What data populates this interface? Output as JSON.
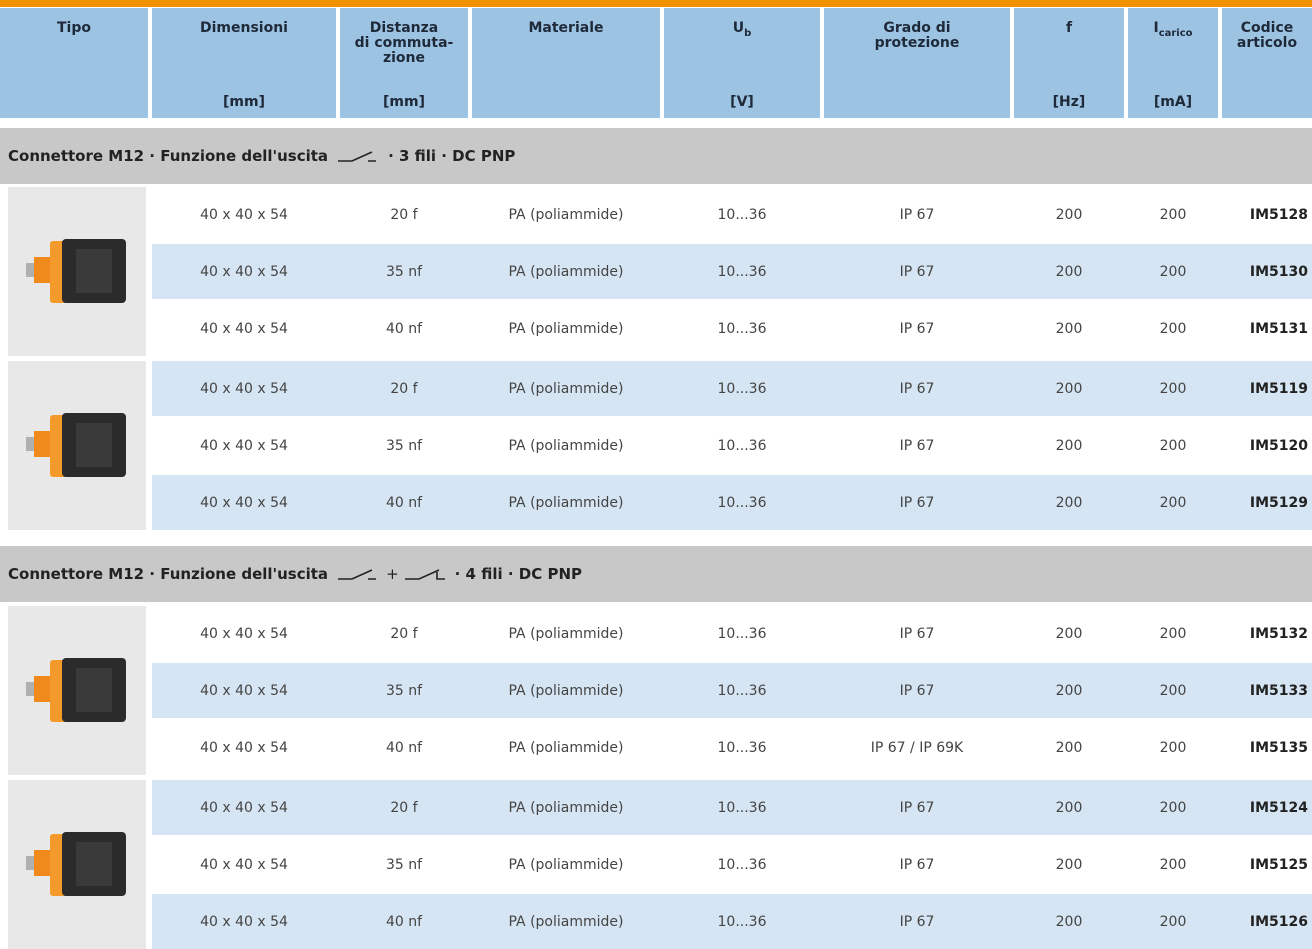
{
  "header": {
    "columns": [
      {
        "lines": [
          "Tipo"
        ]
      },
      {
        "lines": [
          "Dimensioni"
        ],
        "unit": "[mm]"
      },
      {
        "lines": [
          "Distanza",
          "di commuta-",
          "zione"
        ],
        "unit": "[mm]"
      },
      {
        "lines": [
          "Materiale"
        ]
      },
      {
        "lines": [
          "U"
        ],
        "sub": "b",
        "unit": "[V]"
      },
      {
        "lines": [
          "Grado di",
          "protezione"
        ]
      },
      {
        "lines": [
          "f"
        ],
        "unit": "[Hz]"
      },
      {
        "lines": [
          "I"
        ],
        "sub": "carico",
        "unit": "[mA]"
      },
      {
        "lines": [
          "Codice",
          "articolo"
        ]
      }
    ]
  },
  "sections": [
    {
      "title": "Connettore M12 · Funzione dell'uscita",
      "suffix": "· 3  fili · DC PNP",
      "groups": [
        {
          "rows": [
            [
              "40 x 40 x 54",
              "20 f",
              "PA (poliammide)",
              "10...36",
              "IP 67",
              "200",
              "200",
              "IM5128"
            ],
            [
              "40 x 40 x 54",
              "35 nf",
              "PA (poliammide)",
              "10...36",
              "IP 67",
              "200",
              "200",
              "IM5130"
            ],
            [
              "40 x 40 x 54",
              "40 nf",
              "PA (poliammide)",
              "10...36",
              "IP 67",
              "200",
              "200",
              "IM5131"
            ]
          ]
        },
        {
          "rows": [
            [
              "40 x 40 x 54",
              "20 f",
              "PA (poliammide)",
              "10...36",
              "IP 67",
              "200",
              "200",
              "IM5119"
            ],
            [
              "40 x 40 x 54",
              "35 nf",
              "PA (poliammide)",
              "10...36",
              "IP 67",
              "200",
              "200",
              "IM5120"
            ],
            [
              "40 x 40 x 54",
              "40 nf",
              "PA (poliammide)",
              "10...36",
              "IP 67",
              "200",
              "200",
              "IM5129"
            ]
          ]
        }
      ]
    },
    {
      "title": "Connettore M12 · Funzione dell'uscita",
      "joiner": "+",
      "suffix": "· 4  fili · DC PNP",
      "groups": [
        {
          "rows": [
            [
              "40 x 40 x 54",
              "20 f",
              "PA (poliammide)",
              "10...36",
              "IP 67",
              "200",
              "200",
              "IM5132"
            ],
            [
              "40 x 40 x 54",
              "35 nf",
              "PA (poliammide)",
              "10...36",
              "IP 67",
              "200",
              "200",
              "IM5133"
            ],
            [
              "40 x 40 x 54",
              "40 nf",
              "PA (poliammide)",
              "10...36",
              "IP 67 / IP 69K",
              "200",
              "200",
              "IM5135"
            ]
          ]
        },
        {
          "rows": [
            [
              "40 x 40 x 54",
              "20 f",
              "PA (poliammide)",
              "10...36",
              "IP 67",
              "200",
              "200",
              "IM5124"
            ],
            [
              "40 x 40 x 54",
              "35 nf",
              "PA (poliammide)",
              "10...36",
              "IP 67",
              "200",
              "200",
              "IM5125"
            ],
            [
              "40 x 40 x 54",
              "40 nf",
              "PA (poliammide)",
              "10...36",
              "IP 67",
              "200",
              "200",
              "IM5126"
            ]
          ]
        }
      ]
    }
  ]
}
